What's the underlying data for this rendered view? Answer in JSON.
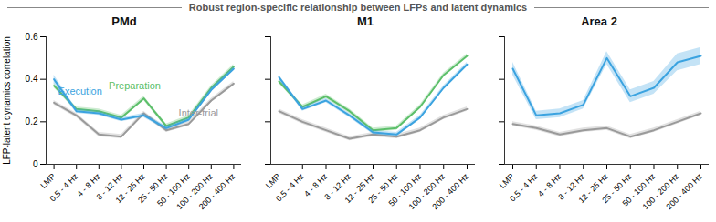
{
  "title": "Robust region-specific relationship between LFPs and latent dynamics",
  "chart_data": [
    {
      "type": "line",
      "title": "PMd",
      "y_label": "LFP-latent dynamics correlation",
      "categories": [
        "LMP",
        "0.5 - 4 Hz",
        "4 - 8 Hz",
        "8 - 12 Hz",
        "12 - 25 Hz",
        "25 - 50 Hz",
        "50 - 100 Hz",
        "100 - 200 Hz",
        "200 - 400 Hz"
      ],
      "series": [
        {
          "name": "Execution",
          "color": "#3ba3e0",
          "values": [
            0.4,
            0.25,
            0.24,
            0.21,
            0.23,
            0.17,
            0.21,
            0.35,
            0.45
          ],
          "error": [
            0.02,
            0.01,
            0.01,
            0.01,
            0.01,
            0.01,
            0.01,
            0.01,
            0.01
          ]
        },
        {
          "name": "Preparation",
          "color": "#5cbf6a",
          "values": [
            0.37,
            0.26,
            0.25,
            0.22,
            0.31,
            0.18,
            0.22,
            0.36,
            0.46
          ],
          "error": [
            0.01,
            0.01,
            0.01,
            0.01,
            0.01,
            0.01,
            0.01,
            0.01,
            0.01
          ]
        },
        {
          "name": "Inter-trial",
          "color": "#9a9a9a",
          "values": [
            0.29,
            0.23,
            0.14,
            0.13,
            0.24,
            0.16,
            0.19,
            0.3,
            0.38
          ],
          "error": [
            0.01,
            0.01,
            0.01,
            0.01,
            0.01,
            0.01,
            0.01,
            0.01,
            0.01
          ]
        }
      ],
      "ylim": [
        0,
        0.6
      ],
      "yticks": [
        0,
        0.2,
        0.4,
        0.6
      ],
      "legend": "inline"
    },
    {
      "type": "line",
      "title": "M1",
      "categories": [
        "LMP",
        "0.5 - 4 Hz",
        "4 - 8 Hz",
        "8 - 12 Hz",
        "12 - 25 Hz",
        "25 - 50 Hz",
        "50 - 100 Hz",
        "100 - 200 Hz",
        "200 - 400 Hz"
      ],
      "series": [
        {
          "name": "Execution",
          "color": "#3ba3e0",
          "values": [
            0.41,
            0.26,
            0.3,
            0.23,
            0.15,
            0.14,
            0.22,
            0.36,
            0.47
          ],
          "error": [
            0.01,
            0.01,
            0.01,
            0.01,
            0.01,
            0.01,
            0.01,
            0.01,
            0.01
          ]
        },
        {
          "name": "Preparation",
          "color": "#5cbf6a",
          "values": [
            0.39,
            0.27,
            0.32,
            0.25,
            0.16,
            0.17,
            0.27,
            0.42,
            0.51
          ],
          "error": [
            0.01,
            0.01,
            0.01,
            0.01,
            0.01,
            0.01,
            0.01,
            0.01,
            0.01
          ]
        },
        {
          "name": "Inter-trial",
          "color": "#9a9a9a",
          "values": [
            0.25,
            0.2,
            0.16,
            0.12,
            0.14,
            0.13,
            0.16,
            0.22,
            0.26
          ],
          "error": [
            0.01,
            0.01,
            0.01,
            0.01,
            0.01,
            0.01,
            0.01,
            0.01,
            0.01
          ]
        }
      ],
      "ylim": [
        0,
        0.6
      ],
      "yticks": [
        0,
        0.2,
        0.4,
        0.6
      ],
      "tick_labels": "x"
    },
    {
      "type": "line",
      "title": "Area 2",
      "categories": [
        "LMP",
        "0.5 - 4 Hz",
        "4 - 8 Hz",
        "8 - 12 Hz",
        "12 - 25 Hz",
        "25 - 50 Hz",
        "50 - 100 Hz",
        "100 - 200 Hz",
        "200 - 400 Hz"
      ],
      "series": [
        {
          "name": "Execution",
          "color": "#3ba3e0",
          "values": [
            0.45,
            0.23,
            0.24,
            0.28,
            0.5,
            0.32,
            0.36,
            0.48,
            0.51
          ],
          "error": [
            0.03,
            0.02,
            0.02,
            0.02,
            0.03,
            0.03,
            0.03,
            0.04,
            0.04
          ]
        },
        {
          "name": "Inter-trial",
          "color": "#9a9a9a",
          "values": [
            0.19,
            0.17,
            0.14,
            0.16,
            0.17,
            0.13,
            0.16,
            0.2,
            0.24
          ],
          "error": [
            0.01,
            0.01,
            0.01,
            0.01,
            0.01,
            0.01,
            0.01,
            0.01,
            0.01
          ]
        }
      ],
      "ylim": [
        0,
        0.6
      ],
      "yticks": [
        0,
        0.2,
        0.4,
        0.6
      ],
      "tick_labels": "x"
    }
  ]
}
